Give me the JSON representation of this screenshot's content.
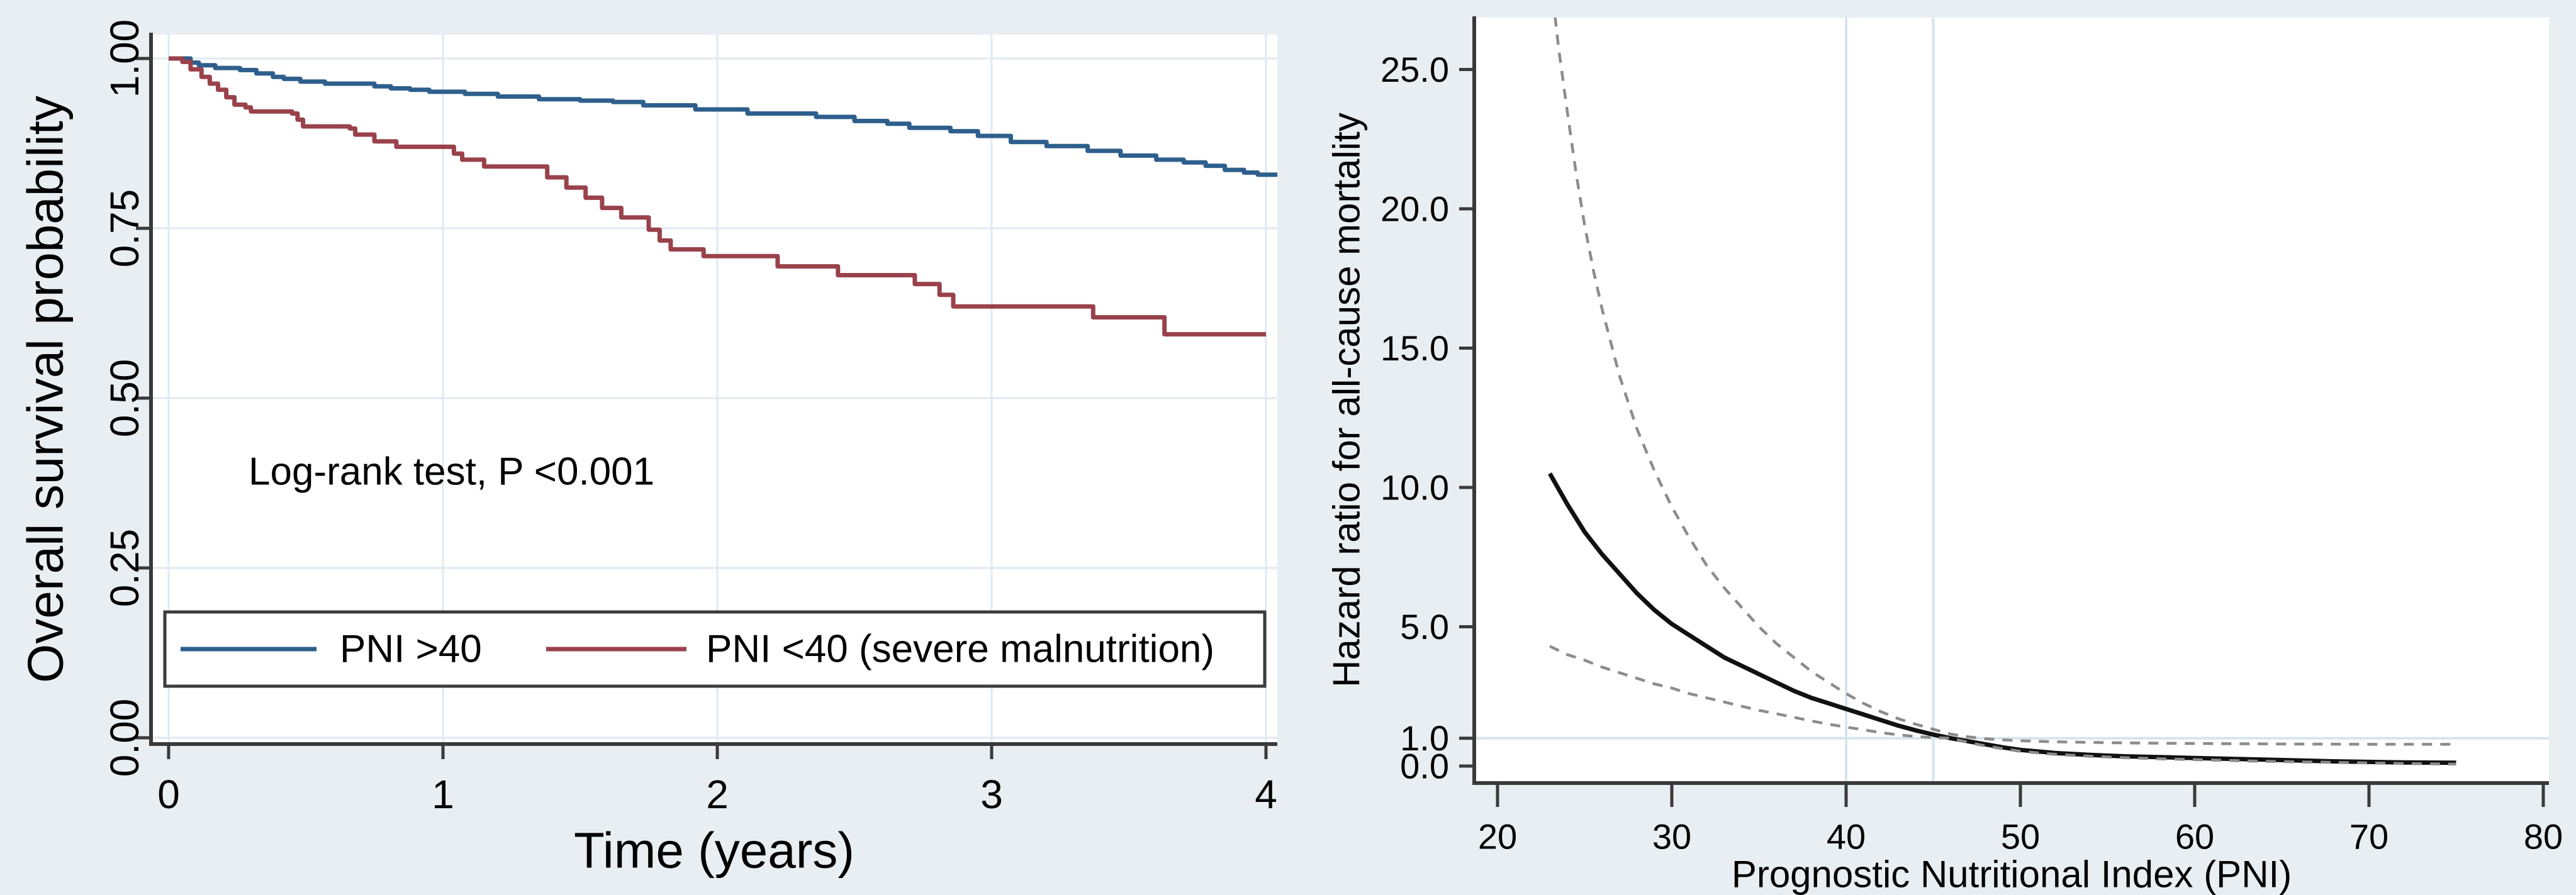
{
  "colors": {
    "background": "#e8eef2",
    "plot_background": "#ffffff",
    "gridline": "#dfeaf0",
    "reference_line": "#d7e5ec",
    "axis": "#3a3a3a",
    "tick": "#3a3a3a",
    "km_blue": "#2e5f8c",
    "km_red": "#99424b",
    "hr_solid": "#111111",
    "hr_ci_dashed": "#8c8c8c",
    "legend_border": "#3c3c3c",
    "text": "#000000"
  },
  "chart_data": [
    {
      "type": "line",
      "subtype": "kaplan-meier-step",
      "title": "",
      "xlabel": "Time (years)",
      "ylabel": "Overall survival probability",
      "annotation": "Log-rank test, P <0.001",
      "xlim": [
        -0.06,
        4.04
      ],
      "ylim": [
        -0.01,
        1.035
      ],
      "xticks": [
        0,
        1,
        2,
        3,
        4
      ],
      "xtick_labels": [
        "0",
        "1",
        "2",
        "3",
        "4"
      ],
      "yticks": [
        0.0,
        0.25,
        0.5,
        0.75,
        1.0
      ],
      "ytick_labels": [
        "0.00",
        "0.25",
        "0.50",
        "0.75",
        "1.00"
      ],
      "grid": "both",
      "legend_position": "bottom-inside-box",
      "series": [
        {
          "name": "PNI >40",
          "color": "#2e5f8c",
          "style": "solid",
          "step": true,
          "points": [
            [
              0,
              1.0
            ],
            [
              0.08,
              0.994
            ],
            [
              0.11,
              0.99
            ],
            [
              0.17,
              0.986
            ],
            [
              0.26,
              0.983
            ],
            [
              0.32,
              0.978
            ],
            [
              0.38,
              0.973
            ],
            [
              0.42,
              0.97
            ],
            [
              0.48,
              0.966
            ],
            [
              0.57,
              0.963
            ],
            [
              0.75,
              0.959
            ],
            [
              0.81,
              0.956
            ],
            [
              0.88,
              0.954
            ],
            [
              0.95,
              0.951
            ],
            [
              1.08,
              0.948
            ],
            [
              1.2,
              0.944
            ],
            [
              1.35,
              0.94
            ],
            [
              1.5,
              0.938
            ],
            [
              1.62,
              0.936
            ],
            [
              1.73,
              0.931
            ],
            [
              1.92,
              0.925
            ],
            [
              2.11,
              0.919
            ],
            [
              2.36,
              0.914
            ],
            [
              2.5,
              0.908
            ],
            [
              2.62,
              0.904
            ],
            [
              2.7,
              0.898
            ],
            [
              2.85,
              0.893
            ],
            [
              2.95,
              0.886
            ],
            [
              3.07,
              0.877
            ],
            [
              3.2,
              0.871
            ],
            [
              3.35,
              0.864
            ],
            [
              3.47,
              0.857
            ],
            [
              3.6,
              0.851
            ],
            [
              3.7,
              0.847
            ],
            [
              3.78,
              0.842
            ],
            [
              3.85,
              0.836
            ],
            [
              3.92,
              0.832
            ],
            [
              3.97,
              0.829
            ],
            [
              4.05,
              0.828
            ]
          ]
        },
        {
          "name": "PNI <40 (severe malnutrition)",
          "color": "#99424b",
          "style": "solid",
          "step": true,
          "points": [
            [
              0,
              1.0
            ],
            [
              0.05,
              0.995
            ],
            [
              0.08,
              0.984
            ],
            [
              0.12,
              0.973
            ],
            [
              0.15,
              0.963
            ],
            [
              0.18,
              0.954
            ],
            [
              0.21,
              0.943
            ],
            [
              0.24,
              0.932
            ],
            [
              0.28,
              0.928
            ],
            [
              0.3,
              0.922
            ],
            [
              0.45,
              0.919
            ],
            [
              0.47,
              0.91
            ],
            [
              0.49,
              0.9
            ],
            [
              0.66,
              0.897
            ],
            [
              0.68,
              0.888
            ],
            [
              0.75,
              0.878
            ],
            [
              0.83,
              0.87
            ],
            [
              1.04,
              0.86
            ],
            [
              1.07,
              0.851
            ],
            [
              1.15,
              0.841
            ],
            [
              1.38,
              0.825
            ],
            [
              1.45,
              0.81
            ],
            [
              1.52,
              0.795
            ],
            [
              1.58,
              0.78
            ],
            [
              1.65,
              0.766
            ],
            [
              1.75,
              0.748
            ],
            [
              1.79,
              0.732
            ],
            [
              1.83,
              0.719
            ],
            [
              1.95,
              0.709
            ],
            [
              2.22,
              0.694
            ],
            [
              2.44,
              0.681
            ],
            [
              2.72,
              0.668
            ],
            [
              2.81,
              0.652
            ],
            [
              2.86,
              0.635
            ],
            [
              3.37,
              0.619
            ],
            [
              3.63,
              0.594
            ],
            [
              4.0,
              0.594
            ]
          ]
        }
      ]
    },
    {
      "type": "line",
      "subtype": "spline-hazard-ratio",
      "title": "",
      "xlabel": "Prognostic Nutritional Index (PNI)",
      "ylabel": "Hazard ratio for all-cause mortality",
      "xlim": [
        18.7,
        80.4
      ],
      "ylim": [
        0,
        26.9
      ],
      "xticks": [
        20,
        30,
        40,
        50,
        60,
        70,
        80
      ],
      "xtick_labels": [
        "20",
        "30",
        "40",
        "50",
        "60",
        "70",
        "80"
      ],
      "yticks": [
        0,
        1,
        5,
        10,
        15,
        20,
        25
      ],
      "ytick_labels": [
        "0.0",
        "1.0",
        "5.0",
        "10.0",
        "15.0",
        "20.0",
        "25.0"
      ],
      "grid": "off",
      "reference_lines": {
        "vertical_x": [
          40,
          45
        ],
        "horizontal_y": [
          1.0
        ]
      },
      "series": [
        {
          "name": "Hazard ratio",
          "color": "#111111",
          "style": "solid",
          "step": false,
          "points": [
            [
              23,
              10.5
            ],
            [
              24,
              9.4
            ],
            [
              25,
              8.4
            ],
            [
              26,
              7.6
            ],
            [
              27,
              6.9
            ],
            [
              28,
              6.2
            ],
            [
              29,
              5.6
            ],
            [
              30,
              5.1
            ],
            [
              31,
              4.7
            ],
            [
              32,
              4.3
            ],
            [
              33,
              3.9
            ],
            [
              34,
              3.6
            ],
            [
              35,
              3.3
            ],
            [
              36,
              3.0
            ],
            [
              37,
              2.7
            ],
            [
              38,
              2.45
            ],
            [
              39,
              2.25
            ],
            [
              40,
              2.05
            ],
            [
              41,
              1.85
            ],
            [
              42,
              1.65
            ],
            [
              43,
              1.45
            ],
            [
              44,
              1.28
            ],
            [
              45,
              1.13
            ],
            [
              46,
              1.0
            ],
            [
              47,
              0.89
            ],
            [
              48,
              0.78
            ],
            [
              49,
              0.67
            ],
            [
              50,
              0.58
            ],
            [
              52,
              0.47
            ],
            [
              54,
              0.4
            ],
            [
              56,
              0.35
            ],
            [
              58,
              0.32
            ],
            [
              60,
              0.29
            ],
            [
              62,
              0.26
            ],
            [
              64,
              0.23
            ],
            [
              66,
              0.2
            ],
            [
              68,
              0.17
            ],
            [
              70,
              0.15
            ],
            [
              72,
              0.13
            ],
            [
              75,
              0.12
            ]
          ]
        },
        {
          "name": "95% CI upper",
          "color": "#8c8c8c",
          "style": "dashed",
          "step": false,
          "points": [
            [
              23.3,
              26.9
            ],
            [
              23.5,
              25.8
            ],
            [
              24,
              23.5
            ],
            [
              24.5,
              21.3
            ],
            [
              25,
              19.4
            ],
            [
              25.5,
              17.8
            ],
            [
              26,
              16.4
            ],
            [
              27,
              14.0
            ],
            [
              28,
              12.1
            ],
            [
              29,
              10.6
            ],
            [
              30,
              9.3
            ],
            [
              31,
              8.2
            ],
            [
              32,
              7.2
            ],
            [
              33,
              6.4
            ],
            [
              34,
              5.7
            ],
            [
              35,
              5.0
            ],
            [
              36,
              4.4
            ],
            [
              37,
              3.9
            ],
            [
              38,
              3.4
            ],
            [
              39,
              3.0
            ],
            [
              40,
              2.6
            ],
            [
              41,
              2.25
            ],
            [
              42,
              1.95
            ],
            [
              43,
              1.7
            ],
            [
              44,
              1.5
            ],
            [
              45,
              1.32
            ],
            [
              46,
              1.15
            ],
            [
              47,
              1.05
            ],
            [
              48,
              0.98
            ],
            [
              49,
              0.94
            ],
            [
              50,
              0.91
            ],
            [
              52,
              0.87
            ],
            [
              54,
              0.85
            ],
            [
              56,
              0.83
            ],
            [
              58,
              0.82
            ],
            [
              60,
              0.81
            ],
            [
              63,
              0.8
            ],
            [
              66,
              0.79
            ],
            [
              70,
              0.78
            ],
            [
              75,
              0.78
            ]
          ]
        },
        {
          "name": "95% CI lower",
          "color": "#8c8c8c",
          "style": "dashed",
          "step": false,
          "points": [
            [
              23,
              4.3
            ],
            [
              24,
              4.0
            ],
            [
              25,
              3.8
            ],
            [
              26,
              3.55
            ],
            [
              27,
              3.35
            ],
            [
              28,
              3.15
            ],
            [
              29,
              2.95
            ],
            [
              30,
              2.8
            ],
            [
              31,
              2.6
            ],
            [
              32,
              2.45
            ],
            [
              33,
              2.3
            ],
            [
              34,
              2.15
            ],
            [
              35,
              2.0
            ],
            [
              36,
              1.88
            ],
            [
              37,
              1.75
            ],
            [
              38,
              1.62
            ],
            [
              39,
              1.5
            ],
            [
              40,
              1.4
            ],
            [
              41,
              1.3
            ],
            [
              42,
              1.2
            ],
            [
              43,
              1.12
            ],
            [
              44,
              1.06
            ],
            [
              45,
              1.02
            ],
            [
              46,
              1.0
            ],
            [
              47,
              0.85
            ],
            [
              48,
              0.72
            ],
            [
              49,
              0.62
            ],
            [
              50,
              0.53
            ],
            [
              52,
              0.42
            ],
            [
              54,
              0.35
            ],
            [
              56,
              0.3
            ],
            [
              58,
              0.26
            ],
            [
              60,
              0.23
            ],
            [
              62,
              0.2
            ],
            [
              64,
              0.17
            ],
            [
              66,
              0.15
            ],
            [
              68,
              0.13
            ],
            [
              70,
              0.11
            ],
            [
              72,
              0.09
            ],
            [
              75,
              0.07
            ]
          ]
        }
      ]
    }
  ]
}
